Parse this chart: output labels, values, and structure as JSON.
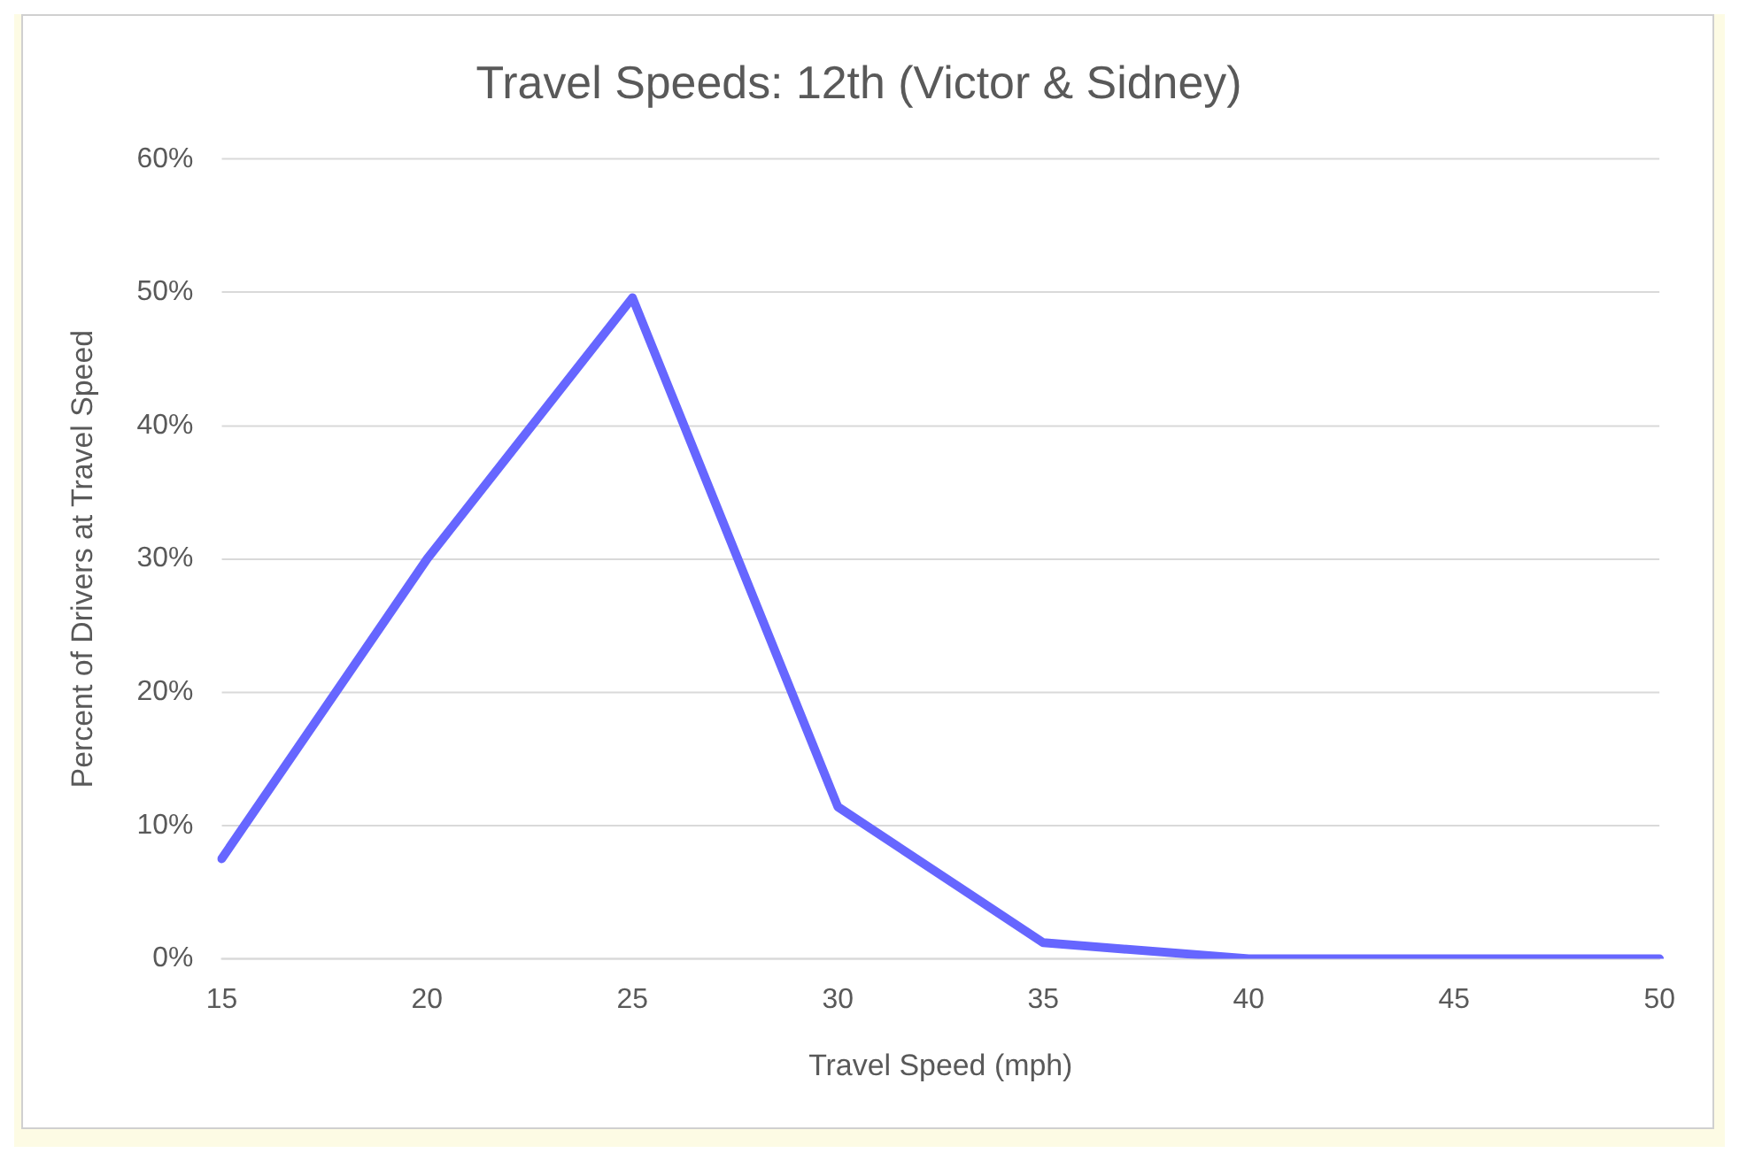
{
  "chart_data": {
    "type": "line",
    "title": "Travel Speeds: 12th (Victor & Sidney)",
    "xlabel": "Travel Speed (mph)",
    "ylabel": "Percent of Drivers at Travel Speed",
    "categories": [
      "15",
      "20",
      "25",
      "30",
      "35",
      "40",
      "45",
      "50"
    ],
    "series": [
      {
        "color": "#6666ff",
        "values": [
          7.5,
          30,
          49.6,
          11.4,
          1.2,
          0,
          0,
          0
        ]
      }
    ],
    "ylim": [
      0,
      60
    ],
    "yticks": [
      {
        "value": 0,
        "label": "0%"
      },
      {
        "value": 10,
        "label": "10%"
      },
      {
        "value": 20,
        "label": "20%"
      },
      {
        "value": 30,
        "label": "30%"
      },
      {
        "value": 40,
        "label": "40%"
      },
      {
        "value": 50,
        "label": "50%"
      },
      {
        "value": 60,
        "label": "60%"
      }
    ],
    "grid": "y",
    "legend": false,
    "marker": "none",
    "line_style": "solid"
  }
}
